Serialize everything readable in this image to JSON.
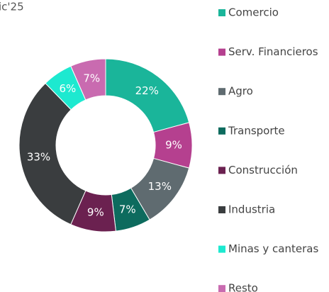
{
  "chart_data": {
    "type": "donut",
    "title": "ic'25",
    "categories": [
      "Comercio",
      "Serv. Financieros",
      "Agro",
      "Transporte",
      "Construcción",
      "Industria",
      "Minas y canteras",
      "Resto"
    ],
    "values": [
      22,
      9,
      13,
      7,
      9,
      33,
      6,
      7
    ],
    "value_labels": [
      "22%",
      "9%",
      "13%",
      "7%",
      "9%",
      "33%",
      "6%",
      "7%"
    ],
    "colors": [
      "#1ab59a",
      "#b5408f",
      "#5f6b70",
      "#0d6b5e",
      "#6b2150",
      "#3a3d3f",
      "#1de9d0",
      "#c96bb0"
    ],
    "legend": "right"
  }
}
